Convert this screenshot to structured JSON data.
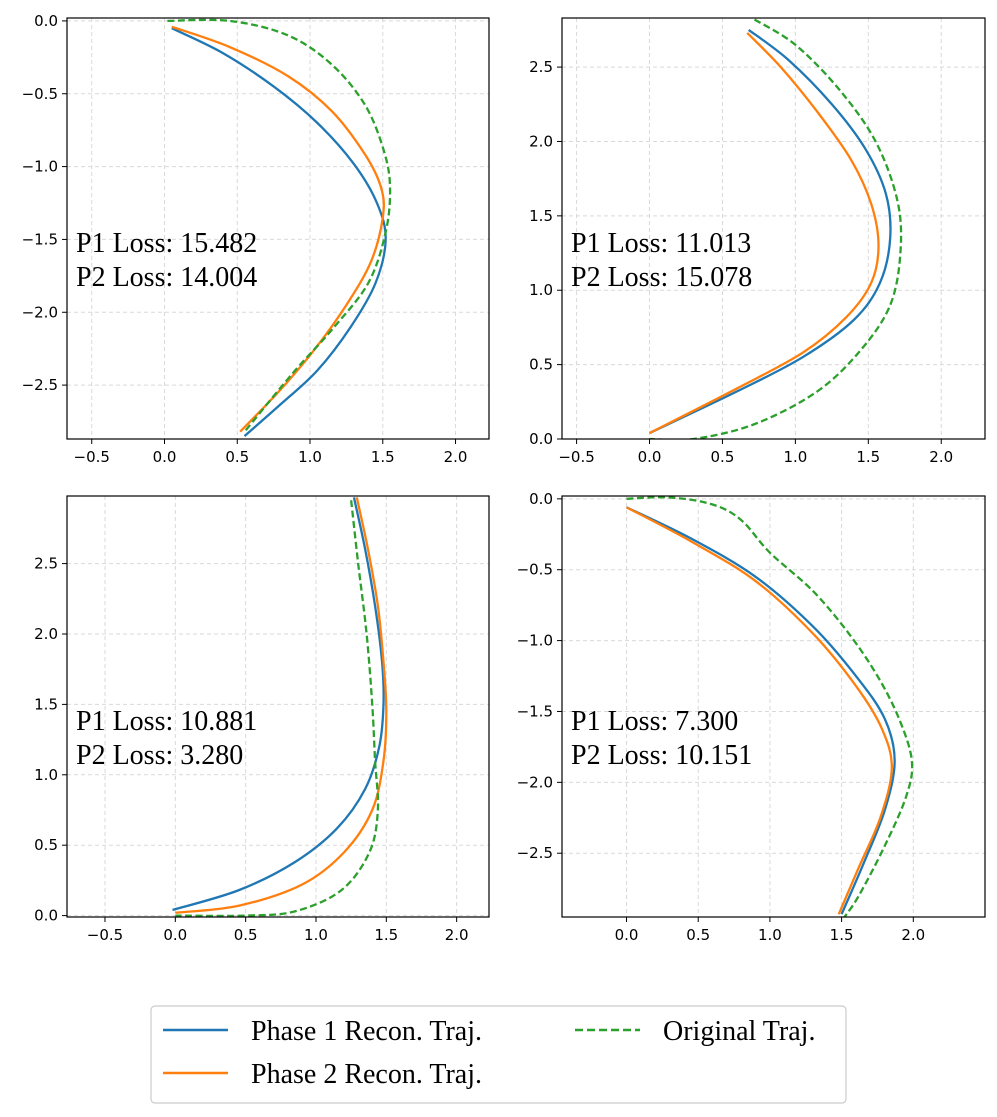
{
  "colors": {
    "phase1": "#1f77b4",
    "phase2": "#ff7f0e",
    "original": "#2ca02c"
  },
  "legend": {
    "entries": [
      {
        "label": "Phase 1 Recon. Traj.",
        "series": "phase1",
        "style": "solid"
      },
      {
        "label": "Phase 2 Recon. Traj.",
        "series": "phase2",
        "style": "solid"
      },
      {
        "label": "Original Traj.",
        "series": "original",
        "style": "dashed"
      }
    ]
  },
  "chart_data": [
    {
      "type": "line",
      "xlim": [
        -0.67,
        2.23
      ],
      "ylim": [
        -2.87,
        0.02
      ],
      "xticks": [
        -0.5,
        0.0,
        0.5,
        1.0,
        1.5,
        2.0
      ],
      "xtick_labels": [
        "−0.5",
        "0.0",
        "0.5",
        "1.0",
        "1.5",
        "2.0"
      ],
      "yticks": [
        0.0,
        -0.5,
        -1.0,
        -1.5,
        -2.0,
        -2.5
      ],
      "ytick_labels": [
        "0.0",
        "−0.5",
        "−1.0",
        "−1.5",
        "−2.0",
        "−2.5"
      ],
      "grid": true,
      "annotation": [
        "P1 Loss: 15.482",
        "P2 Loss: 14.004"
      ],
      "series": [
        {
          "name": "Phase 1 Recon. Traj.",
          "key": "phase1",
          "points": [
            [
              0.05,
              -0.05
            ],
            [
              0.4,
              -0.22
            ],
            [
              0.75,
              -0.45
            ],
            [
              1.05,
              -0.7
            ],
            [
              1.3,
              -0.98
            ],
            [
              1.46,
              -1.25
            ],
            [
              1.52,
              -1.5
            ],
            [
              1.45,
              -1.8
            ],
            [
              1.28,
              -2.1
            ],
            [
              1.05,
              -2.4
            ],
            [
              0.8,
              -2.63
            ],
            [
              0.55,
              -2.85
            ]
          ]
        },
        {
          "name": "Phase 2 Recon. Traj.",
          "key": "phase2",
          "points": [
            [
              0.05,
              -0.04
            ],
            [
              0.45,
              -0.18
            ],
            [
              0.85,
              -0.38
            ],
            [
              1.15,
              -0.62
            ],
            [
              1.38,
              -0.92
            ],
            [
              1.49,
              -1.15
            ],
            [
              1.5,
              -1.35
            ],
            [
              1.42,
              -1.65
            ],
            [
              1.25,
              -1.95
            ],
            [
              1.02,
              -2.27
            ],
            [
              0.78,
              -2.55
            ],
            [
              0.52,
              -2.82
            ]
          ]
        },
        {
          "name": "Original Traj.",
          "key": "original",
          "points": [
            [
              0.02,
              0.0
            ],
            [
              0.45,
              0.0
            ],
            [
              0.85,
              -0.1
            ],
            [
              1.15,
              -0.3
            ],
            [
              1.38,
              -0.58
            ],
            [
              1.51,
              -0.9
            ],
            [
              1.55,
              -1.15
            ],
            [
              1.52,
              -1.45
            ],
            [
              1.4,
              -1.8
            ],
            [
              1.15,
              -2.12
            ],
            [
              0.88,
              -2.42
            ],
            [
              0.55,
              -2.82
            ]
          ]
        }
      ]
    },
    {
      "type": "line",
      "xlim": [
        -0.6,
        2.3
      ],
      "ylim": [
        0.0,
        2.83
      ],
      "xticks": [
        -0.5,
        0.0,
        0.5,
        1.0,
        1.5,
        2.0
      ],
      "xtick_labels": [
        "−0.5",
        "0.0",
        "0.5",
        "1.0",
        "1.5",
        "2.0"
      ],
      "yticks": [
        0.0,
        0.5,
        1.0,
        1.5,
        2.0,
        2.5
      ],
      "ytick_labels": [
        "0.0",
        "0.5",
        "1.0",
        "1.5",
        "2.0",
        "2.5"
      ],
      "grid": true,
      "annotation": [
        "P1 Loss: 11.013",
        "P2 Loss: 15.078"
      ],
      "series": [
        {
          "name": "Phase 1 Recon. Traj.",
          "key": "phase1",
          "points": [
            [
              0.68,
              2.75
            ],
            [
              0.95,
              2.55
            ],
            [
              1.25,
              2.25
            ],
            [
              1.48,
              1.95
            ],
            [
              1.62,
              1.65
            ],
            [
              1.65,
              1.35
            ],
            [
              1.58,
              1.05
            ],
            [
              1.4,
              0.8
            ],
            [
              1.05,
              0.55
            ],
            [
              0.6,
              0.32
            ],
            [
              0.0,
              0.04
            ]
          ]
        },
        {
          "name": "Phase 2 Recon. Traj.",
          "key": "phase2",
          "points": [
            [
              0.67,
              2.73
            ],
            [
              0.9,
              2.5
            ],
            [
              1.15,
              2.2
            ],
            [
              1.38,
              1.88
            ],
            [
              1.52,
              1.58
            ],
            [
              1.57,
              1.3
            ],
            [
              1.52,
              1.05
            ],
            [
              1.35,
              0.82
            ],
            [
              1.05,
              0.58
            ],
            [
              0.6,
              0.34
            ],
            [
              0.0,
              0.04
            ]
          ]
        },
        {
          "name": "Original Traj.",
          "key": "original",
          "points": [
            [
              0.72,
              2.82
            ],
            [
              1.0,
              2.65
            ],
            [
              1.3,
              2.35
            ],
            [
              1.55,
              2.0
            ],
            [
              1.7,
              1.6
            ],
            [
              1.72,
              1.25
            ],
            [
              1.65,
              0.9
            ],
            [
              1.45,
              0.6
            ],
            [
              1.15,
              0.32
            ],
            [
              0.72,
              0.1
            ],
            [
              0.3,
              0.0
            ],
            [
              0.0,
              0.0
            ]
          ]
        }
      ]
    },
    {
      "type": "line",
      "xlim": [
        -0.77,
        2.23
      ],
      "ylim": [
        -0.01,
        2.98
      ],
      "xticks": [
        -0.5,
        0.0,
        0.5,
        1.0,
        1.5,
        2.0
      ],
      "xtick_labels": [
        "−0.5",
        "0.0",
        "0.5",
        "1.0",
        "1.5",
        "2.0"
      ],
      "yticks": [
        0.0,
        0.5,
        1.0,
        1.5,
        2.0,
        2.5
      ],
      "ytick_labels": [
        "0.0",
        "0.5",
        "1.0",
        "1.5",
        "2.0",
        "2.5"
      ],
      "grid": true,
      "annotation": [
        "P1 Loss: 10.881",
        "P2 Loss: 3.280"
      ],
      "series": [
        {
          "name": "Phase 1 Recon. Traj.",
          "key": "phase1",
          "points": [
            [
              1.27,
              2.97
            ],
            [
              1.35,
              2.6
            ],
            [
              1.42,
              2.2
            ],
            [
              1.47,
              1.8
            ],
            [
              1.48,
              1.5
            ],
            [
              1.45,
              1.2
            ],
            [
              1.35,
              0.9
            ],
            [
              1.15,
              0.62
            ],
            [
              0.85,
              0.38
            ],
            [
              0.45,
              0.18
            ],
            [
              -0.02,
              0.04
            ]
          ]
        },
        {
          "name": "Phase 2 Recon. Traj.",
          "key": "phase2",
          "points": [
            [
              1.29,
              2.97
            ],
            [
              1.37,
              2.6
            ],
            [
              1.44,
              2.2
            ],
            [
              1.48,
              1.8
            ],
            [
              1.5,
              1.45
            ],
            [
              1.48,
              1.1
            ],
            [
              1.4,
              0.75
            ],
            [
              1.2,
              0.45
            ],
            [
              0.9,
              0.22
            ],
            [
              0.45,
              0.07
            ],
            [
              0.0,
              0.02
            ]
          ]
        },
        {
          "name": "Original Traj.",
          "key": "original",
          "points": [
            [
              1.25,
              2.95
            ],
            [
              1.3,
              2.5
            ],
            [
              1.36,
              2.0
            ],
            [
              1.4,
              1.5
            ],
            [
              1.42,
              1.1
            ],
            [
              1.44,
              0.75
            ],
            [
              1.38,
              0.45
            ],
            [
              1.18,
              0.18
            ],
            [
              0.85,
              0.03
            ],
            [
              0.5,
              0.0
            ],
            [
              0.0,
              0.0
            ]
          ]
        }
      ]
    },
    {
      "type": "line",
      "xlim": [
        -0.45,
        2.5
      ],
      "ylim": [
        -2.95,
        0.02
      ],
      "xticks": [
        0.0,
        0.5,
        1.0,
        1.5,
        2.0
      ],
      "xtick_labels": [
        "0.0",
        "0.5",
        "1.0",
        "1.5",
        "2.0"
      ],
      "yticks": [
        0.0,
        -0.5,
        -1.0,
        -1.5,
        -2.0,
        -2.5
      ],
      "ytick_labels": [
        "0.0",
        "−0.5",
        "−1.0",
        "−1.5",
        "−2.0",
        "−2.5"
      ],
      "grid": true,
      "annotation": [
        "P1 Loss: 7.300",
        "P2 Loss: 10.151"
      ],
      "series": [
        {
          "name": "Phase 1 Recon. Traj.",
          "key": "phase1",
          "points": [
            [
              0.0,
              -0.06
            ],
            [
              0.45,
              -0.28
            ],
            [
              0.9,
              -0.55
            ],
            [
              1.3,
              -0.9
            ],
            [
              1.6,
              -1.25
            ],
            [
              1.8,
              -1.55
            ],
            [
              1.87,
              -1.85
            ],
            [
              1.8,
              -2.2
            ],
            [
              1.65,
              -2.58
            ],
            [
              1.5,
              -2.93
            ]
          ]
        },
        {
          "name": "Phase 2 Recon. Traj.",
          "key": "phase2",
          "points": [
            [
              0.0,
              -0.06
            ],
            [
              0.45,
              -0.3
            ],
            [
              0.9,
              -0.58
            ],
            [
              1.3,
              -0.95
            ],
            [
              1.6,
              -1.32
            ],
            [
              1.78,
              -1.62
            ],
            [
              1.85,
              -1.9
            ],
            [
              1.77,
              -2.25
            ],
            [
              1.62,
              -2.6
            ],
            [
              1.48,
              -2.93
            ]
          ]
        },
        {
          "name": "Original Traj.",
          "key": "original",
          "points": [
            [
              0.0,
              0.0
            ],
            [
              0.3,
              0.01
            ],
            [
              0.6,
              -0.04
            ],
            [
              0.8,
              -0.15
            ],
            [
              1.0,
              -0.38
            ],
            [
              1.3,
              -0.65
            ],
            [
              1.55,
              -0.95
            ],
            [
              1.75,
              -1.25
            ],
            [
              1.9,
              -1.55
            ],
            [
              1.99,
              -1.85
            ],
            [
              1.95,
              -2.1
            ],
            [
              1.8,
              -2.45
            ],
            [
              1.62,
              -2.8
            ],
            [
              1.52,
              -2.95
            ]
          ]
        }
      ]
    }
  ]
}
